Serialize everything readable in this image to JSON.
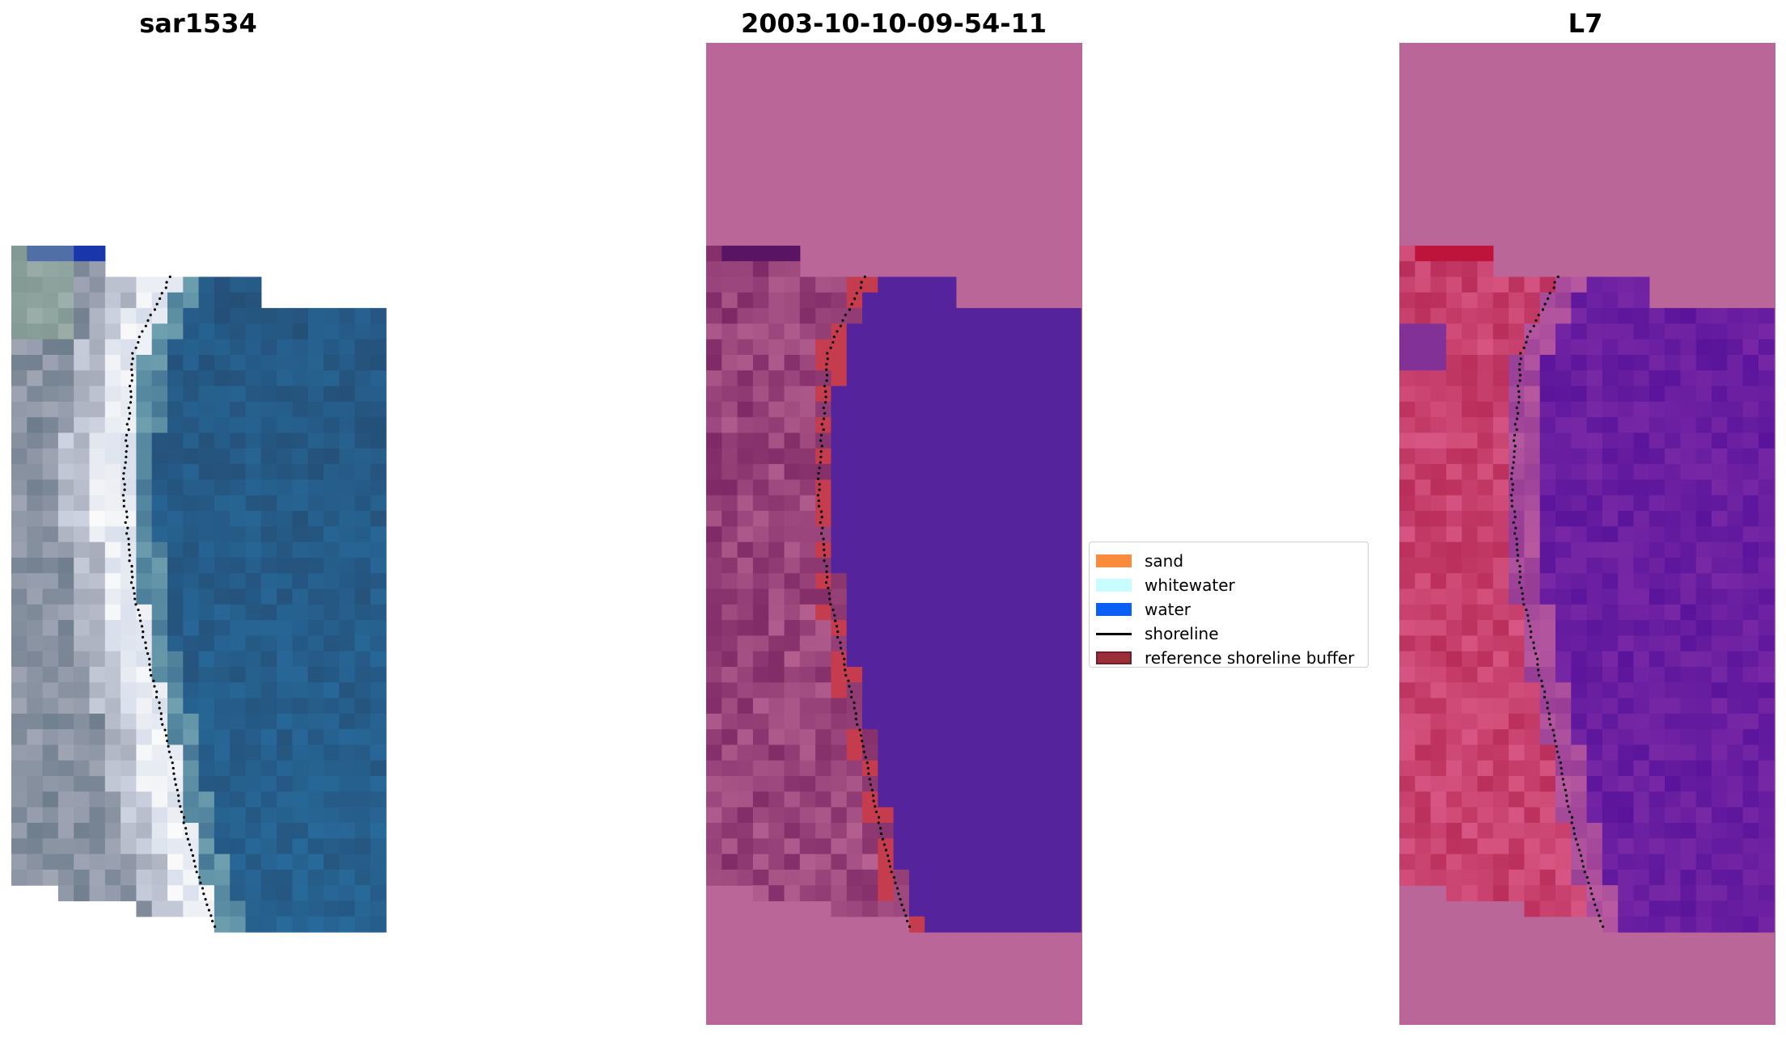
{
  "panels": [
    {
      "title": "sar1534",
      "style": "rgb"
    },
    {
      "title": "2003-10-10-09-54-11",
      "style": "classified"
    },
    {
      "title": "L7",
      "style": "index"
    }
  ],
  "legend": [
    {
      "label": "sand",
      "color": "#f98b3c",
      "kind": "patch"
    },
    {
      "label": "whitewater",
      "color": "#c8fcff",
      "kind": "patch"
    },
    {
      "label": "water",
      "color": "#0b5ff5",
      "kind": "patch"
    },
    {
      "label": "shoreline",
      "color": "#000000",
      "kind": "line"
    },
    {
      "label": "reference shoreline buffer",
      "color": "#9a2f3a",
      "kind": "patch"
    }
  ],
  "colors": {
    "nodata_pink": "#bb6698",
    "water_purple": "#55239b",
    "buffer_red": "#c43c4e"
  }
}
